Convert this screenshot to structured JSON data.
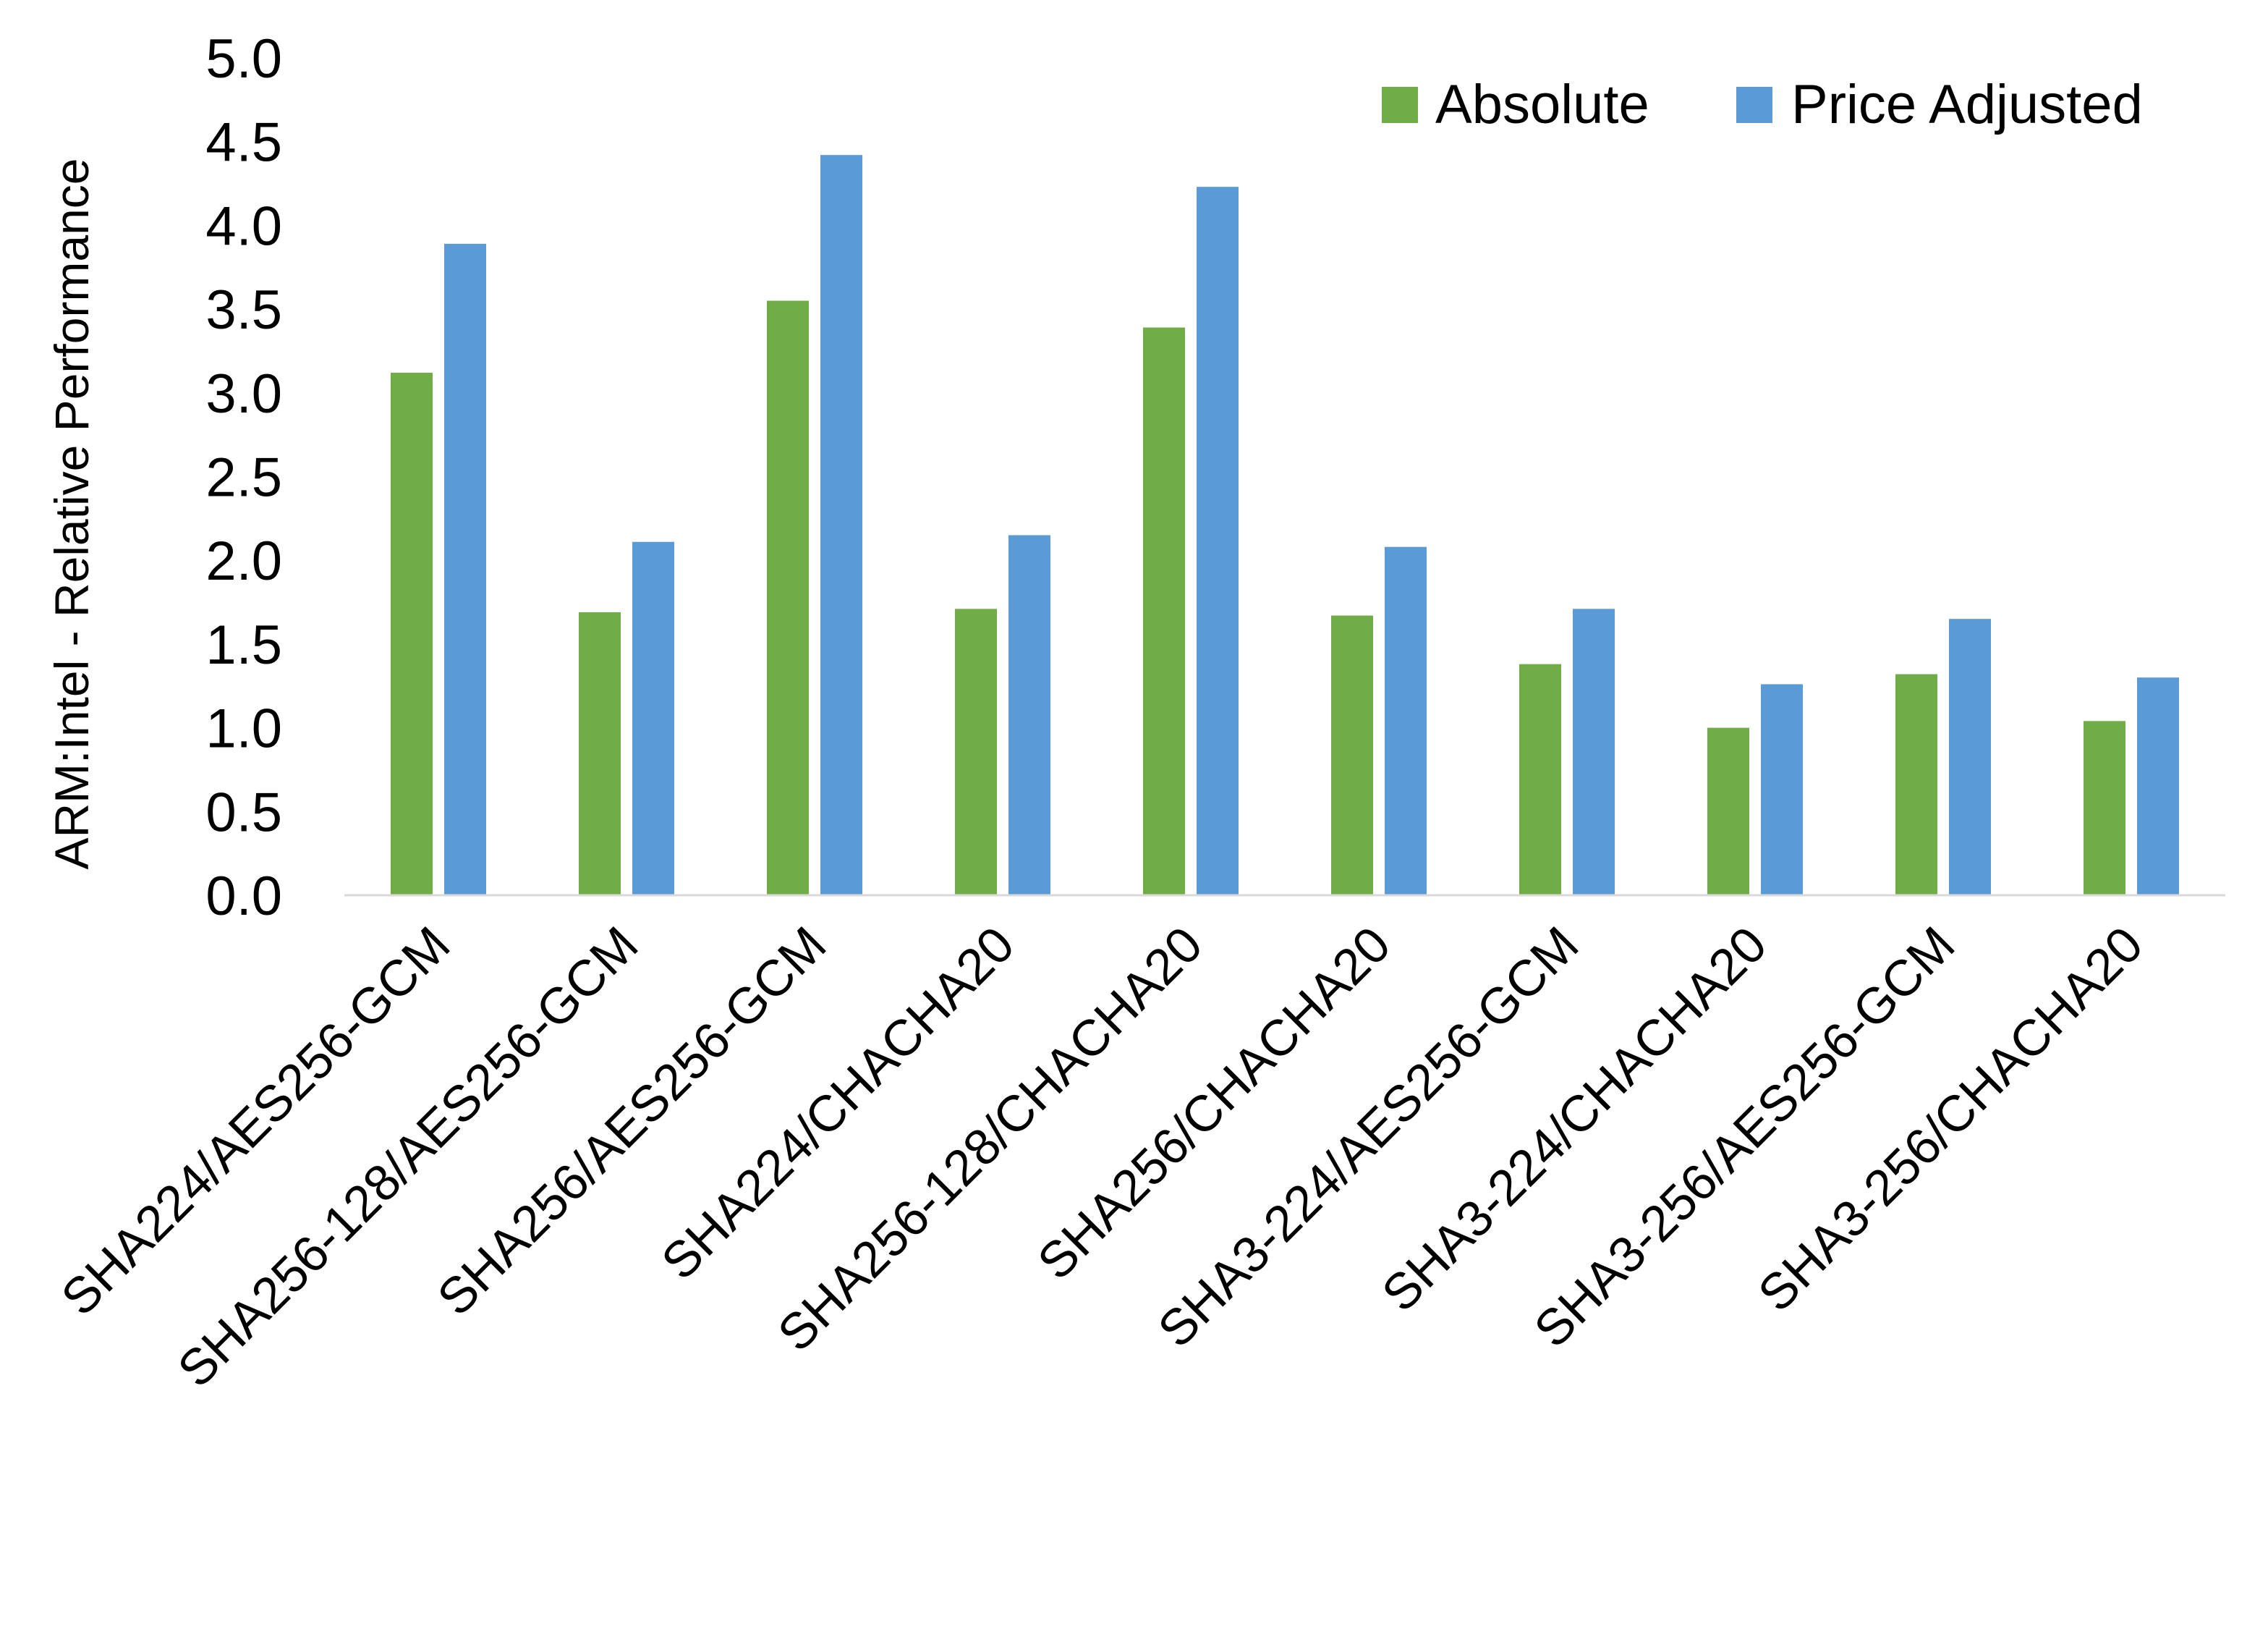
{
  "chart_data": {
    "type": "bar",
    "title": "",
    "xlabel": "",
    "ylabel": "ARM:Intel - Relative Performance",
    "ylim": [
      0,
      5.0
    ],
    "yticks": [
      "0.0",
      "0.5",
      "1.0",
      "1.5",
      "2.0",
      "2.5",
      "3.0",
      "3.5",
      "4.0",
      "4.5",
      "5.0"
    ],
    "grid": false,
    "legend_position": "top-right",
    "categories": [
      "SHA224/AES256-GCM",
      "SHA256-128/AES256-GCM",
      "SHA256/AES256-GCM",
      "SHA224/CHACHA20",
      "SHA256-128/CHACHA20",
      "SHA256/CHACHA20",
      "SHA3-224/AES256-GCM",
      "SHA3-224/CHACHA20",
      "SHA3-256/AES256-GCM",
      "SHA3-256/CHACHA20"
    ],
    "series": [
      {
        "name": "Absolute",
        "color": "#70ad47",
        "values": [
          3.12,
          1.69,
          3.55,
          1.71,
          3.39,
          1.67,
          1.38,
          1.0,
          1.32,
          1.04
        ]
      },
      {
        "name": "Price Adjusted",
        "color": "#5b9bd5",
        "values": [
          3.89,
          2.11,
          4.42,
          2.15,
          4.23,
          2.08,
          1.71,
          1.26,
          1.65,
          1.3
        ]
      }
    ]
  }
}
